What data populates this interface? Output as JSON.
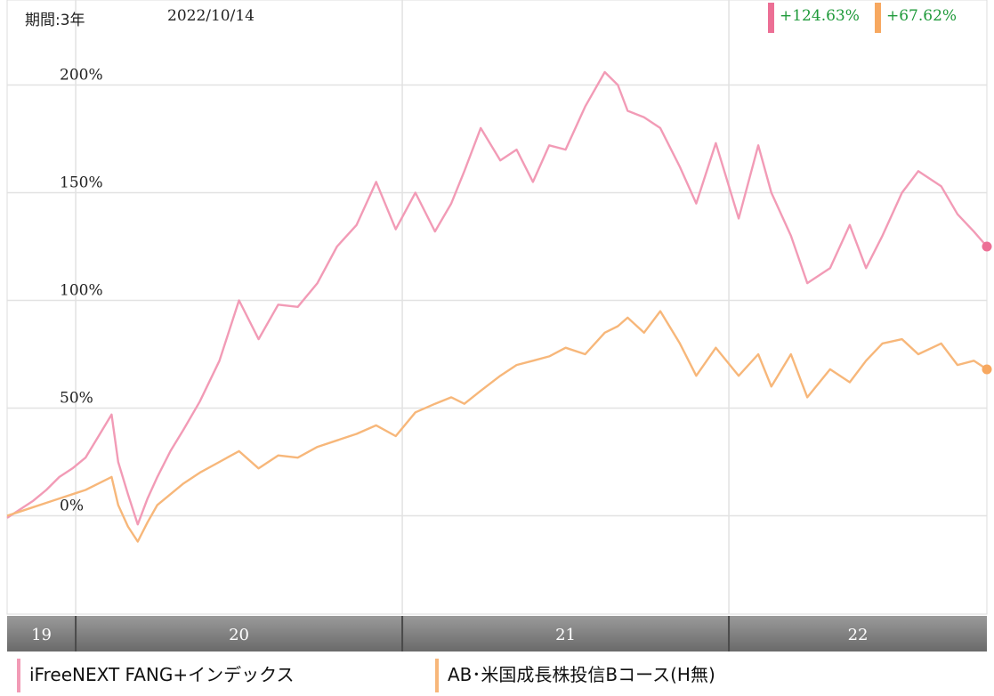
{
  "header": {
    "period_label": "期間:3年",
    "date": "2022/10/14"
  },
  "chart_data": {
    "type": "line",
    "title": "",
    "xlabel": "",
    "ylabel": "",
    "x_tick_labels": [
      "19",
      "20",
      "21",
      "22"
    ],
    "y_ticks": [
      0,
      50,
      100,
      150,
      200
    ],
    "y_tick_labels": [
      "0%",
      "50%",
      "100%",
      "150%",
      "200%"
    ],
    "ylim": [
      -45,
      240
    ],
    "grid": true,
    "legend_position": "bottom",
    "x_start": 2019.79,
    "x_end": 2022.79,
    "x_period_boundaries": [
      2020.0,
      2021.0,
      2022.0
    ],
    "series": [
      {
        "name": "iFreeNEXT FANG+インデックス",
        "color": "#f29bb6",
        "final_return_label": "+124.63%",
        "x": [
          2019.79,
          2019.83,
          2019.87,
          2019.91,
          2019.95,
          2019.99,
          2020.03,
          2020.07,
          2020.11,
          2020.13,
          2020.16,
          2020.19,
          2020.22,
          2020.25,
          2020.29,
          2020.33,
          2020.38,
          2020.44,
          2020.5,
          2020.56,
          2020.62,
          2020.68,
          2020.74,
          2020.8,
          2020.86,
          2020.92,
          2020.98,
          2021.04,
          2021.1,
          2021.15,
          2021.19,
          2021.24,
          2021.3,
          2021.35,
          2021.4,
          2021.45,
          2021.5,
          2021.56,
          2021.62,
          2021.66,
          2021.69,
          2021.74,
          2021.79,
          2021.85,
          2021.9,
          2021.96,
          2022.03,
          2022.09,
          2022.13,
          2022.19,
          2022.24,
          2022.31,
          2022.37,
          2022.42,
          2022.47,
          2022.53,
          2022.58,
          2022.65,
          2022.7,
          2022.75,
          2022.79
        ],
        "values": [
          -1,
          3,
          7,
          12,
          18,
          22,
          27,
          37,
          47,
          25,
          10,
          -4,
          8,
          18,
          30,
          40,
          53,
          72,
          100,
          82,
          98,
          97,
          108,
          125,
          135,
          155,
          133,
          150,
          132,
          145,
          160,
          180,
          165,
          170,
          155,
          172,
          170,
          190,
          206,
          200,
          188,
          185,
          180,
          162,
          145,
          173,
          138,
          172,
          150,
          130,
          108,
          115,
          135,
          115,
          130,
          150,
          160,
          153,
          140,
          132,
          125
        ]
      },
      {
        "name": "AB･米国成長株投信Bコース(H無)",
        "color": "#f7b77a",
        "final_return_label": "+67.62%",
        "x": [
          2019.79,
          2019.83,
          2019.87,
          2019.91,
          2019.95,
          2019.99,
          2020.03,
          2020.07,
          2020.11,
          2020.13,
          2020.16,
          2020.19,
          2020.22,
          2020.25,
          2020.29,
          2020.33,
          2020.38,
          2020.44,
          2020.5,
          2020.56,
          2020.62,
          2020.68,
          2020.74,
          2020.8,
          2020.86,
          2020.92,
          2020.98,
          2021.04,
          2021.1,
          2021.15,
          2021.19,
          2021.24,
          2021.3,
          2021.35,
          2021.4,
          2021.45,
          2021.5,
          2021.56,
          2021.62,
          2021.66,
          2021.69,
          2021.74,
          2021.79,
          2021.85,
          2021.9,
          2021.96,
          2022.03,
          2022.09,
          2022.13,
          2022.19,
          2022.24,
          2022.31,
          2022.37,
          2022.42,
          2022.47,
          2022.53,
          2022.58,
          2022.65,
          2022.7,
          2022.75,
          2022.79
        ],
        "values": [
          0,
          2,
          4,
          6,
          8,
          10,
          12,
          15,
          18,
          5,
          -5,
          -12,
          -3,
          5,
          10,
          15,
          20,
          25,
          30,
          22,
          28,
          27,
          32,
          35,
          38,
          42,
          37,
          48,
          52,
          55,
          52,
          58,
          65,
          70,
          72,
          74,
          78,
          75,
          85,
          88,
          92,
          85,
          95,
          80,
          65,
          78,
          65,
          75,
          60,
          75,
          55,
          68,
          62,
          72,
          80,
          82,
          75,
          80,
          70,
          72,
          68
        ]
      }
    ]
  },
  "legend": {
    "items": [
      "iFreeNEXT FANG+インデックス",
      "AB･米国成長株投信Bコース(H無)"
    ]
  }
}
